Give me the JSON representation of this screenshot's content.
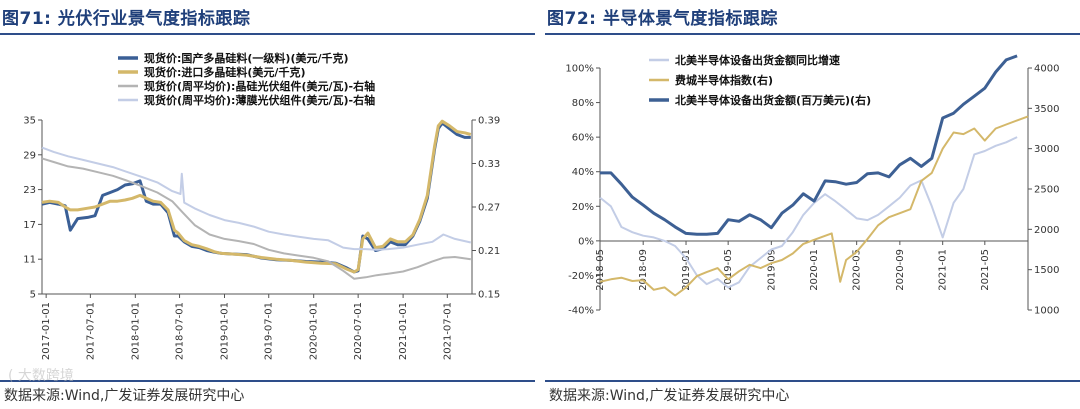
{
  "left": {
    "title_prefix": "图71:",
    "title_text": "光伏行业景气度指标跟踪",
    "source": "数据来源:Wind,广发证券发展研究中心",
    "watermark": "( 大数跨境"
  },
  "right": {
    "title_prefix": "图72:",
    "title_text": "半导体景气度指标跟踪",
    "source": "数据来源:Wind,广发证券发展研究中心"
  },
  "chart_data": [
    {
      "type": "line",
      "title": "光伏行业景气度指标跟踪",
      "x_ticks": [
        "2017-01-01",
        "2017-07-01",
        "2018-01-01",
        "2018-07-01",
        "2019-01-01",
        "2019-07-01",
        "2020-01-01",
        "2020-07-01",
        "2021-01-01",
        "2021-07-01"
      ],
      "x_range": [
        "2016-12-15",
        "2021-10-10"
      ],
      "y_left": {
        "range": [
          5,
          35
        ],
        "ticks": [
          "35",
          "29",
          "23",
          "17",
          "11",
          "5"
        ]
      },
      "y_right": {
        "range": [
          0.15,
          0.39
        ],
        "ticks": [
          "0.39",
          "0.33",
          "0.27",
          "0.21",
          "0.15"
        ]
      },
      "grid": false,
      "legend_position": "top",
      "series": [
        {
          "name": "现货价:国产多晶硅料(一级料)(美元/千克)",
          "axis": "left",
          "color": "#3a5f96",
          "width": 3,
          "x": [
            "2016-12-15",
            "2017-01-15",
            "2017-02-20",
            "2017-03-20",
            "2017-04-10",
            "2017-05-10",
            "2017-06-20",
            "2017-07-20",
            "2017-08-20",
            "2017-09-20",
            "2017-10-20",
            "2017-11-20",
            "2017-12-20",
            "2018-01-20",
            "2018-02-15",
            "2018-03-15",
            "2018-04-15",
            "2018-05-15",
            "2018-06-10",
            "2018-06-25",
            "2018-07-20",
            "2018-08-20",
            "2018-09-20",
            "2018-10-20",
            "2018-11-20",
            "2018-12-20",
            "2019-02-01",
            "2019-04-01",
            "2019-06-01",
            "2019-08-01",
            "2019-10-01",
            "2019-12-01",
            "2020-02-01",
            "2020-04-01",
            "2020-05-15",
            "2020-06-15",
            "2020-07-01",
            "2020-07-20",
            "2020-08-10",
            "2020-09-10",
            "2020-10-10",
            "2020-11-10",
            "2020-12-10",
            "2021-01-10",
            "2021-02-10",
            "2021-03-10",
            "2021-04-10",
            "2021-05-10",
            "2021-05-25",
            "2021-06-10",
            "2021-07-10",
            "2021-08-10",
            "2021-09-10",
            "2021-10-05"
          ],
          "y": [
            20.5,
            20.8,
            20.5,
            20.2,
            16,
            18,
            18.2,
            18.5,
            22,
            22.5,
            23,
            23.8,
            24,
            24.5,
            21,
            20.5,
            20.5,
            19,
            15,
            15,
            14,
            13.2,
            13,
            12.5,
            12.2,
            12,
            11.9,
            11.8,
            11.2,
            10.9,
            10.8,
            10.6,
            10.5,
            10.3,
            9.5,
            8.8,
            9,
            15,
            14.5,
            12.5,
            12.8,
            14,
            13.5,
            13.5,
            15,
            17.5,
            21.5,
            30,
            33.5,
            34.5,
            33.5,
            32.5,
            32,
            32
          ]
        },
        {
          "name": "现货价:进口多晶硅料(美元/千克)",
          "axis": "left",
          "color": "#d4b86a",
          "width": 3,
          "x": [
            "2016-12-15",
            "2017-01-15",
            "2017-02-20",
            "2017-03-20",
            "2017-04-10",
            "2017-05-10",
            "2017-06-20",
            "2017-07-20",
            "2017-08-20",
            "2017-09-20",
            "2017-10-20",
            "2017-11-20",
            "2017-12-20",
            "2018-01-20",
            "2018-02-15",
            "2018-03-15",
            "2018-04-15",
            "2018-05-15",
            "2018-06-10",
            "2018-06-25",
            "2018-07-20",
            "2018-08-20",
            "2018-09-20",
            "2018-10-20",
            "2018-11-20",
            "2018-12-20",
            "2019-02-01",
            "2019-04-01",
            "2019-06-01",
            "2019-08-01",
            "2019-10-01",
            "2019-12-01",
            "2020-02-01",
            "2020-04-01",
            "2020-05-15",
            "2020-06-15",
            "2020-07-01",
            "2020-07-20",
            "2020-08-10",
            "2020-09-10",
            "2020-10-10",
            "2020-11-10",
            "2020-12-10",
            "2021-01-10",
            "2021-02-10",
            "2021-03-10",
            "2021-04-10",
            "2021-05-10",
            "2021-05-25",
            "2021-06-10",
            "2021-07-10",
            "2021-08-10",
            "2021-09-10",
            "2021-10-05"
          ],
          "y": [
            20.8,
            21,
            20.8,
            20,
            19.5,
            19.5,
            19.8,
            20,
            20.5,
            21,
            21,
            21.2,
            21.5,
            22,
            21.5,
            21,
            20.8,
            19.5,
            16,
            15.5,
            14.2,
            13.5,
            13.2,
            12.8,
            12.3,
            12,
            11.9,
            11.7,
            11.3,
            11,
            10.8,
            10.5,
            10.3,
            10.2,
            9.3,
            8.8,
            9.2,
            14.5,
            15.5,
            13,
            13.2,
            14.5,
            14,
            14,
            15.2,
            17.8,
            22,
            30.5,
            34,
            34.8,
            34,
            33,
            32.8,
            32.5
          ]
        },
        {
          "name": "现货价(周平均价):晶硅光伏组件(美元/瓦)-右轴",
          "axis": "right",
          "color": "#b4b4b4",
          "width": 2,
          "x": [
            "2016-12-15",
            "2017-02-01",
            "2017-04-01",
            "2017-06-01",
            "2017-08-01",
            "2017-10-01",
            "2017-12-01",
            "2018-02-01",
            "2018-04-01",
            "2018-06-01",
            "2018-07-15",
            "2018-09-01",
            "2018-11-01",
            "2019-01-01",
            "2019-03-01",
            "2019-05-01",
            "2019-07-01",
            "2019-09-01",
            "2019-11-01",
            "2020-01-01",
            "2020-03-01",
            "2020-05-01",
            "2020-06-15",
            "2020-08-01",
            "2020-09-15",
            "2020-11-01",
            "2021-01-01",
            "2021-03-01",
            "2021-05-01",
            "2021-06-15",
            "2021-08-01",
            "2021-10-05"
          ],
          "y": [
            0.337,
            0.332,
            0.326,
            0.323,
            0.318,
            0.313,
            0.306,
            0.298,
            0.29,
            0.278,
            0.262,
            0.245,
            0.232,
            0.226,
            0.223,
            0.219,
            0.211,
            0.206,
            0.203,
            0.2,
            0.195,
            0.182,
            0.171,
            0.173,
            0.176,
            0.178,
            0.181,
            0.187,
            0.195,
            0.2,
            0.201,
            0.198
          ]
        },
        {
          "name": "现货价(周平均价):薄膜光伏组件(美元/瓦)-右轴",
          "axis": "right",
          "color": "#c3cde6",
          "width": 2,
          "x": [
            "2016-12-15",
            "2017-02-01",
            "2017-04-01",
            "2017-06-01",
            "2017-08-01",
            "2017-10-01",
            "2017-12-01",
            "2018-02-01",
            "2018-04-01",
            "2018-06-01",
            "2018-07-05",
            "2018-07-10",
            "2018-07-20",
            "2018-09-01",
            "2018-11-01",
            "2019-01-01",
            "2019-03-01",
            "2019-05-01",
            "2019-07-01",
            "2019-09-01",
            "2019-11-01",
            "2020-01-01",
            "2020-03-01",
            "2020-05-01",
            "2020-06-15",
            "2020-08-01",
            "2020-09-15",
            "2020-11-01",
            "2021-01-01",
            "2021-03-01",
            "2021-05-01",
            "2021-06-15",
            "2021-08-01",
            "2021-10-05"
          ],
          "y": [
            0.352,
            0.346,
            0.34,
            0.335,
            0.33,
            0.325,
            0.318,
            0.311,
            0.304,
            0.292,
            0.288,
            0.316,
            0.276,
            0.268,
            0.259,
            0.252,
            0.248,
            0.243,
            0.236,
            0.232,
            0.229,
            0.226,
            0.224,
            0.214,
            0.212,
            0.212,
            0.211,
            0.212,
            0.214,
            0.218,
            0.222,
            0.232,
            0.226,
            0.221
          ]
        }
      ]
    },
    {
      "type": "line",
      "title": "半导体景气度指标跟踪",
      "x_ticks": [
        "2018-05",
        "2018-09",
        "2019-01",
        "2019-05",
        "2019-09",
        "2020-01",
        "2020-05",
        "2020-09",
        "2021-01",
        "2021-05"
      ],
      "x_range": [
        "2018-05",
        "2021-09"
      ],
      "y_left": {
        "range": [
          -40,
          100
        ],
        "ticks": [
          "100%",
          "80%",
          "60%",
          "40%",
          "20%",
          "0%",
          "-20%",
          "-40%"
        ]
      },
      "y_right": {
        "range": [
          1000,
          4000
        ],
        "ticks": [
          "4000",
          "3500",
          "3000",
          "2500",
          "2000",
          "1500",
          "1000"
        ]
      },
      "grid": false,
      "legend_position": "top-left",
      "series": [
        {
          "name": "北美半导体设备出货金额同比增速",
          "axis": "left",
          "color": "#c3cde6",
          "width": 2,
          "x": [
            "2018-05",
            "2018-06",
            "2018-07",
            "2018-08",
            "2018-09",
            "2018-10",
            "2018-11",
            "2018-12",
            "2019-01",
            "2019-02",
            "2019-03",
            "2019-04",
            "2019-05",
            "2019-06",
            "2019-07",
            "2019-08",
            "2019-09",
            "2019-10",
            "2019-11",
            "2019-12",
            "2020-01",
            "2020-02",
            "2020-03",
            "2020-04",
            "2020-05",
            "2020-06",
            "2020-07",
            "2020-08",
            "2020-09",
            "2020-10",
            "2020-11",
            "2020-12",
            "2021-01",
            "2021-02",
            "2021-03",
            "2021-04",
            "2021-05",
            "2021-06",
            "2021-07",
            "2021-08"
          ],
          "y": [
            25,
            20,
            8,
            5,
            3,
            2,
            0,
            -3,
            -10,
            -20,
            -25,
            -22,
            -27,
            -24,
            -15,
            -10,
            -5,
            -3,
            5,
            15,
            22,
            27,
            23,
            18,
            13,
            12,
            15,
            20,
            25,
            32,
            35,
            20,
            2,
            22,
            30,
            50,
            52,
            55,
            57,
            60
          ]
        },
        {
          "name": "费城半导体指数(右)",
          "axis": "right",
          "color": "#d4b86a",
          "width": 2,
          "x": [
            "2018-05",
            "2018-06",
            "2018-07",
            "2018-08",
            "2018-09",
            "2018-10",
            "2018-11",
            "2018-12",
            "2019-01",
            "2019-02",
            "2019-03",
            "2019-04",
            "2019-05",
            "2019-06",
            "2019-07",
            "2019-08",
            "2019-09",
            "2019-10",
            "2019-11",
            "2019-12",
            "2020-01",
            "2020-02",
            "2020-02-20",
            "2020-03-15",
            "2020-04",
            "2020-05",
            "2020-06",
            "2020-07",
            "2020-08",
            "2020-09",
            "2020-10",
            "2020-11",
            "2020-12",
            "2021-01",
            "2021-02",
            "2021-03",
            "2021-04",
            "2021-05",
            "2021-06",
            "2021-07",
            "2021-08",
            "2021-09"
          ],
          "y": [
            1350,
            1380,
            1400,
            1360,
            1370,
            1250,
            1280,
            1180,
            1280,
            1420,
            1470,
            1520,
            1380,
            1480,
            1560,
            1520,
            1580,
            1620,
            1700,
            1820,
            1870,
            1920,
            1950,
            1350,
            1620,
            1720,
            1880,
            2050,
            2150,
            2200,
            2250,
            2600,
            2700,
            3000,
            3200,
            3180,
            3250,
            3100,
            3250,
            3300,
            3350,
            3400
          ]
        },
        {
          "name": "北美半导体设备出货金额(百万美元)(右)",
          "axis": "right",
          "color": "#3d6094",
          "width": 3,
          "x": [
            "2018-05",
            "2018-06",
            "2018-07",
            "2018-08",
            "2018-09",
            "2018-10",
            "2018-11",
            "2018-12",
            "2019-01",
            "2019-02",
            "2019-03",
            "2019-04",
            "2019-05",
            "2019-06",
            "2019-07",
            "2019-08",
            "2019-09",
            "2019-10",
            "2019-11",
            "2019-12",
            "2020-01",
            "2020-02",
            "2020-03",
            "2020-04",
            "2020-05",
            "2020-06",
            "2020-07",
            "2020-08",
            "2020-09",
            "2020-10",
            "2020-11",
            "2020-12",
            "2021-01",
            "2021-02",
            "2021-03",
            "2021-04",
            "2021-05",
            "2021-06",
            "2021-07",
            "2021-08"
          ],
          "y": [
            2700,
            2700,
            2560,
            2400,
            2300,
            2200,
            2120,
            2030,
            1950,
            1940,
            1940,
            1950,
            2120,
            2100,
            2180,
            2120,
            2020,
            2200,
            2300,
            2440,
            2350,
            2600,
            2590,
            2560,
            2580,
            2690,
            2700,
            2650,
            2800,
            2880,
            2780,
            2880,
            3380,
            3440,
            3550,
            3650,
            3750,
            3950,
            4100,
            4150
          ]
        }
      ]
    }
  ]
}
